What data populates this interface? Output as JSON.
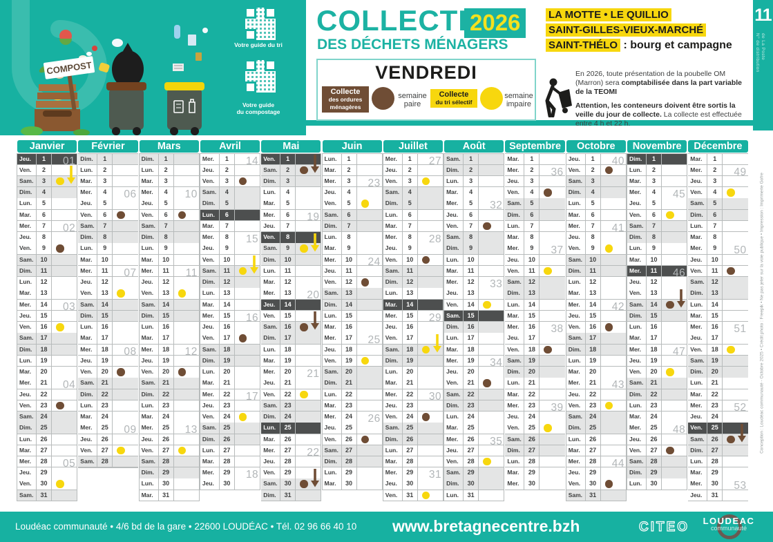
{
  "colors": {
    "teal": "#17b1a1",
    "yellow": "#f7d70e",
    "brown": "#6f4d35",
    "holiday_row": "#4d4f4f",
    "weekend_row": "#e4e5e5",
    "grid_line": "#b7bbbb",
    "week_number": "#b2b6b8"
  },
  "header": {
    "qr1_caption": "Votre guide du tri",
    "qr2_caption": "Votre guide\ndu compostage",
    "compost_sign": "COMPOST",
    "title_main": "COLLECTE",
    "title_year": "2026",
    "title_sub": "DES DÉCHETS MÉNAGERS",
    "collection_day": "VENDREDI",
    "legend": {
      "om_badge_title": "Collecte",
      "om_badge_rest": "des ordures\nménagères",
      "om_label": "semaine\npaire",
      "tri_badge_title": "Collecte",
      "tri_badge_rest": "du tri sélectif",
      "tri_label": "semaine\nimpaire"
    },
    "communes_line1": "LA MOTTE • LE QUILLIO",
    "communes_line2": "SAINT-GILLES-VIEUX-MARCHÉ",
    "communes_line3": "SAINT-THÉLO",
    "communes_line3_suffix": " : bourg et campagne",
    "note1_normal": "En 2026, toute présentation de la poubelle OM (Marron) sera ",
    "note1_bold": "comptabilisée dans la part variable de la TEOMI",
    "note2_bold": "Attention, les conteneurs doivent être sortis la veille du jour de collecte.",
    "note2_normal": " La collecte est effectuée entre 4 h et 22 h.",
    "post_number": "11",
    "post_label_line1": "N° de distribution",
    "post_label_line2": "de La Poste"
  },
  "calendar": {
    "dow": [
      "Lun.",
      "Mar.",
      "Mer.",
      "Jeu.",
      "Ven.",
      "Sam.",
      "Dim."
    ],
    "weekend_dows": [
      "Sam.",
      "Dim."
    ],
    "dot_colors": {
      "om": "#6f4d35",
      "tri": "#f7d70e"
    },
    "months": [
      {
        "name": "Janvier",
        "len": 31,
        "start": "Jeu.",
        "holidays": [
          1
        ],
        "dots": {
          "3": "tri",
          "9": "om",
          "16": "tri",
          "23": "om",
          "30": "tri"
        },
        "arrows": {
          "2": "tri"
        },
        "weeks": {
          "1": "01",
          "7": "02",
          "14": "03",
          "21": "04",
          "28": "05"
        }
      },
      {
        "name": "Février",
        "len": 28,
        "start": "Dim.",
        "holidays": [],
        "dots": {
          "6": "om",
          "13": "tri",
          "20": "om",
          "27": "tri"
        },
        "arrows": {},
        "weeks": {
          "4": "06",
          "11": "07",
          "18": "08",
          "25": "09"
        }
      },
      {
        "name": "Mars",
        "len": 31,
        "start": "Dim.",
        "holidays": [],
        "dots": {
          "6": "om",
          "13": "tri",
          "20": "om",
          "27": "tri"
        },
        "arrows": {},
        "weeks": {
          "4": "10",
          "11": "11",
          "18": "12",
          "25": "13"
        }
      },
      {
        "name": "Avril",
        "len": 30,
        "start": "Mer.",
        "holidays": [
          6
        ],
        "dots": {
          "3": "om",
          "11": "tri",
          "17": "om",
          "24": "tri"
        },
        "arrows": {
          "10": "tri"
        },
        "weeks": {
          "1": "14",
          "8": "15",
          "15": "16",
          "22": "17",
          "29": "18"
        }
      },
      {
        "name": "Mai",
        "len": 31,
        "start": "Ven.",
        "holidays": [
          1,
          8,
          14,
          25
        ],
        "dots": {
          "2": "om",
          "9": "tri",
          "16": "om",
          "22": "tri",
          "30": "om"
        },
        "arrows": {
          "1": "om",
          "8": "tri",
          "15": "om",
          "29": "om"
        },
        "weeks": {
          "6": "19",
          "13": "20",
          "20": "21",
          "27": "22"
        }
      },
      {
        "name": "Juin",
        "len": 30,
        "start": "Lun.",
        "holidays": [],
        "dots": {
          "5": "tri",
          "12": "om",
          "19": "tri",
          "26": "om"
        },
        "arrows": {},
        "weeks": {
          "3": "23",
          "10": "24",
          "17": "25",
          "24": "26"
        }
      },
      {
        "name": "Juillet",
        "len": 31,
        "start": "Mer.",
        "holidays": [
          14
        ],
        "dots": {
          "3": "tri",
          "10": "om",
          "18": "tri",
          "24": "om",
          "31": "tri"
        },
        "arrows": {
          "17": "tri"
        },
        "weeks": {
          "1": "27",
          "8": "28",
          "15": "29",
          "22": "30",
          "29": "31"
        }
      },
      {
        "name": "Août",
        "len": 31,
        "start": "Sam.",
        "holidays": [
          15
        ],
        "dots": {
          "7": "om",
          "14": "tri",
          "21": "om",
          "28": "tri"
        },
        "arrows": {},
        "weeks": {
          "5": "32",
          "12": "33",
          "19": "34",
          "26": "35"
        }
      },
      {
        "name": "Septembre",
        "len": 30,
        "start": "Mar.",
        "holidays": [],
        "dots": {
          "4": "om",
          "11": "tri",
          "18": "om",
          "25": "tri"
        },
        "arrows": {},
        "weeks": {
          "2": "36",
          "9": "37",
          "16": "38",
          "23": "39"
        }
      },
      {
        "name": "Octobre",
        "len": 31,
        "start": "Jeu.",
        "holidays": [],
        "dots": {
          "2": "om",
          "9": "tri",
          "16": "om",
          "23": "tri",
          "30": "om"
        },
        "arrows": {},
        "weeks": {
          "1": "40",
          "7": "41",
          "14": "42",
          "21": "43",
          "28": "44"
        }
      },
      {
        "name": "Novembre",
        "len": 30,
        "start": "Dim.",
        "holidays": [
          1,
          11
        ],
        "dots": {
          "6": "tri",
          "14": "om",
          "20": "tri",
          "27": "om"
        },
        "arrows": {
          "13": "om"
        },
        "weeks": {
          "4": "45",
          "11": "46",
          "18": "47",
          "25": "48"
        }
      },
      {
        "name": "Décembre",
        "len": 31,
        "start": "Mar.",
        "holidays": [
          25
        ],
        "dots": {
          "4": "tri",
          "11": "om",
          "18": "tri",
          "26": "om"
        },
        "arrows": {
          "25": "om"
        },
        "weeks": {
          "2": "49",
          "9": "50",
          "16": "51",
          "23": "52",
          "30": "53"
        }
      }
    ]
  },
  "side_credit": "Conception : Loudéac communauté - Octobre 2025 • Crédit photo : Freepik • Ne pas jeter sur la voie publique • Impression : Imprimerie Gofre",
  "footer": {
    "address": "Loudéac communauté • 4/6 bd de la gare • 22600 LOUDÉAC • Tél. 02 96 66 40 10",
    "website": "www.bretagnecentre.bzh",
    "citeo": "CITEO",
    "loudeac_line1": "LOUDEAC",
    "loudeac_line2": "communauté"
  }
}
